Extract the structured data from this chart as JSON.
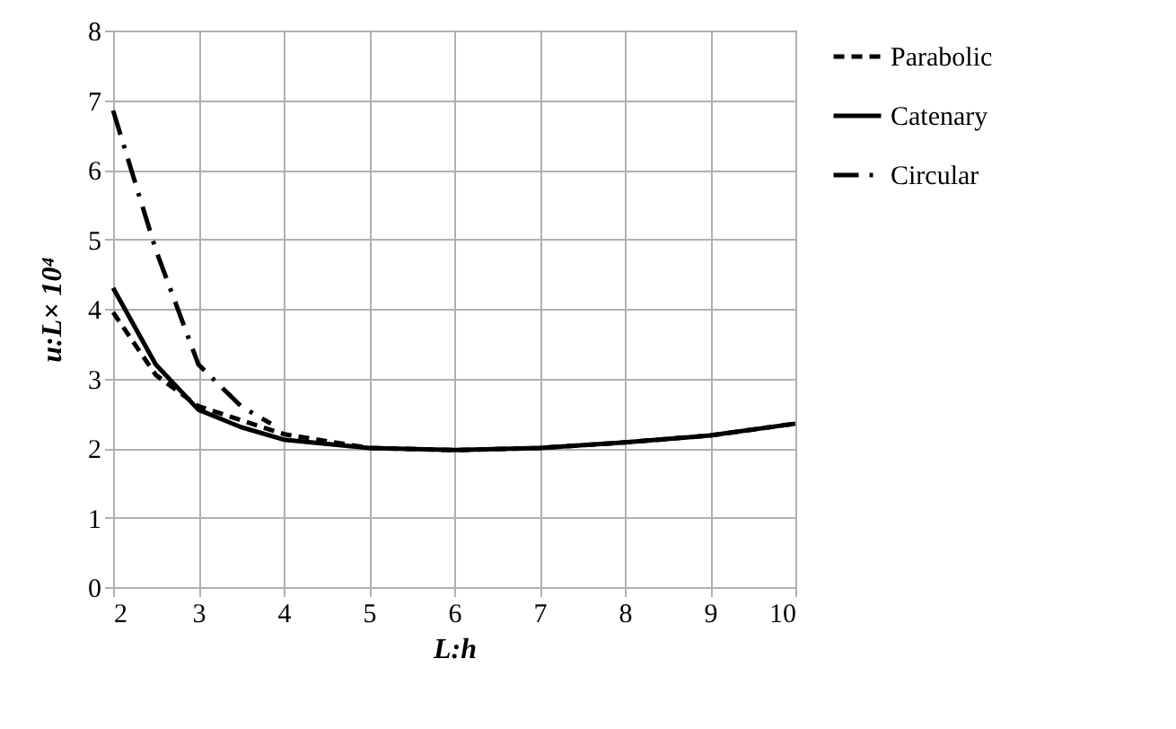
{
  "chart_data": {
    "type": "line",
    "xlabel": "L:h",
    "ylabel": "u:L× 10⁴",
    "x": [
      2,
      2.5,
      3,
      3.5,
      4,
      5,
      6,
      7,
      8,
      9,
      10
    ],
    "series": [
      {
        "name": "Parabolic",
        "color": "#000000",
        "line_style": "dashed",
        "values": [
          3.95,
          3.05,
          2.6,
          2.4,
          2.2,
          2.0,
          1.97,
          2.0,
          2.08,
          2.18,
          2.35
        ]
      },
      {
        "name": "Catenary",
        "color": "#000000",
        "line_style": "solid",
        "values": [
          4.3,
          3.2,
          2.55,
          2.3,
          2.12,
          2.0,
          1.97,
          2.0,
          2.08,
          2.18,
          2.35
        ]
      },
      {
        "name": "Circular",
        "color": "#000000",
        "line_style": "dashdot",
        "x": [
          2,
          2.5,
          3,
          3.5,
          3.85
        ],
        "values": [
          6.85,
          4.85,
          3.2,
          2.6,
          2.35
        ]
      }
    ],
    "xlim": [
      2,
      10
    ],
    "xticks": [
      2,
      3,
      4,
      5,
      6,
      7,
      8,
      9,
      10
    ],
    "ylim": [
      0,
      8
    ],
    "yticks": [
      0,
      1,
      2,
      3,
      4,
      5,
      6,
      7,
      8
    ],
    "grid": true,
    "legend": "right",
    "marker": "none"
  }
}
